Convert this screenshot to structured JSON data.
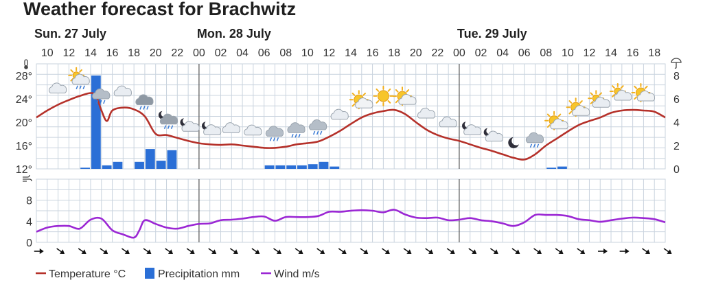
{
  "title": "Weather forecast for Brachwitz",
  "days": [
    {
      "label": "Sun. 27 July",
      "hour": 9
    },
    {
      "label": "Mon. 28 July",
      "hour": 24
    },
    {
      "label": "Tue. 29 July",
      "hour": 48
    }
  ],
  "hour_ticks": [
    "10",
    "12",
    "14",
    "16",
    "18",
    "20",
    "22",
    "00",
    "02",
    "04",
    "06",
    "08",
    "10",
    "12",
    "14",
    "16",
    "18",
    "20",
    "22",
    "00",
    "02",
    "04",
    "06",
    "08",
    "10",
    "12",
    "14",
    "16",
    "18"
  ],
  "colors": {
    "temperature": "#b5312a",
    "precipitation": "#2b6fd6",
    "wind": "#9b27d4",
    "grid": "#c9d3de",
    "day_separator": "#555555"
  },
  "chart_data": [
    {
      "type": "line",
      "title": "",
      "x_unit": "hours from Sun. 27 July 00:00",
      "x_range": [
        9,
        67
      ],
      "temperature": {
        "name": "Temperature °C",
        "axis": "left",
        "ticks": [
          "28°",
          "24°",
          "20°",
          "16°",
          "12°"
        ],
        "tick_values": [
          28,
          24,
          20,
          16,
          12
        ],
        "ylim": [
          12,
          30
        ],
        "x": [
          9,
          10,
          11,
          12,
          13,
          14,
          14.5,
          15,
          15.5,
          16,
          17,
          18,
          19,
          20,
          21,
          22,
          23,
          24,
          25,
          26,
          27,
          28,
          29,
          30,
          31,
          32,
          33,
          34,
          35,
          36,
          37,
          38,
          39,
          40,
          41,
          42,
          43,
          44,
          45,
          46,
          47,
          48,
          49,
          50,
          51,
          52,
          53,
          54,
          55,
          56,
          57,
          58,
          59,
          60,
          61,
          62,
          63,
          64,
          65,
          66,
          67
        ],
        "values": [
          20.8,
          22,
          23,
          23.8,
          24.5,
          25,
          24.5,
          22,
          20.2,
          22,
          22.5,
          22.2,
          21,
          18,
          17.8,
          17.3,
          16.8,
          16.4,
          16.2,
          16.1,
          16.2,
          16,
          15.8,
          15.6,
          15.6,
          15.8,
          16.2,
          16.4,
          16.7,
          17.5,
          18.5,
          19.7,
          20.8,
          21.5,
          21.9,
          22.1,
          21.4,
          20,
          18.7,
          17.8,
          17.2,
          16.8,
          16.2,
          15.6,
          15.1,
          14.5,
          13.9,
          13.6,
          14.5,
          16,
          17.2,
          18.4,
          19.5,
          20.2,
          20.8,
          21.6,
          22,
          22.1,
          22,
          21.8,
          20.8
        ]
      },
      "precipitation": {
        "name": "Precipitation mm",
        "axis": "right",
        "ticks": [
          "8",
          "6",
          "4",
          "2",
          "0"
        ],
        "tick_values": [
          8,
          6,
          4,
          2,
          0
        ],
        "ylim": [
          0,
          9
        ],
        "x": [
          13,
          14,
          15,
          16,
          18,
          19,
          20,
          21,
          30,
          31,
          32,
          33,
          34,
          35,
          36,
          56,
          57
        ],
        "values": [
          0.1,
          8,
          0.3,
          0.6,
          0.6,
          1.7,
          0.7,
          1.6,
          0.3,
          0.3,
          0.3,
          0.3,
          0.4,
          0.6,
          0.2,
          0.1,
          0.2
        ]
      },
      "icons": [
        {
          "x": 11,
          "kind": "cloudy"
        },
        {
          "x": 13,
          "kind": "partly-cloudy-rain"
        },
        {
          "x": 15,
          "kind": "cloudy-rain"
        },
        {
          "x": 17,
          "kind": "cloudy"
        },
        {
          "x": 19,
          "kind": "rain"
        },
        {
          "x": 21,
          "kind": "night-cloudy-rain"
        },
        {
          "x": 23,
          "kind": "night-cloudy"
        },
        {
          "x": 25,
          "kind": "night-cloudy"
        },
        {
          "x": 27,
          "kind": "cloudy"
        },
        {
          "x": 29,
          "kind": "cloudy"
        },
        {
          "x": 31,
          "kind": "cloudy-rain"
        },
        {
          "x": 33,
          "kind": "cloudy-rain"
        },
        {
          "x": 35,
          "kind": "cloudy-rain"
        },
        {
          "x": 37,
          "kind": "cloudy"
        },
        {
          "x": 39,
          "kind": "partly-sunny"
        },
        {
          "x": 41,
          "kind": "sun"
        },
        {
          "x": 43,
          "kind": "partly-sunny"
        },
        {
          "x": 45,
          "kind": "cloudy"
        },
        {
          "x": 47,
          "kind": "cloudy"
        },
        {
          "x": 49,
          "kind": "night-cloudy"
        },
        {
          "x": 51,
          "kind": "night-cloudy"
        },
        {
          "x": 53,
          "kind": "moon"
        },
        {
          "x": 55,
          "kind": "cloudy-rain"
        },
        {
          "x": 57,
          "kind": "partly-sunny"
        },
        {
          "x": 59,
          "kind": "partly-sunny"
        },
        {
          "x": 61,
          "kind": "partly-cloudy"
        },
        {
          "x": 63,
          "kind": "partly-cloudy"
        },
        {
          "x": 65,
          "kind": "partly-sunny"
        }
      ]
    },
    {
      "type": "line",
      "title": "",
      "x_range": [
        9,
        67
      ],
      "wind": {
        "name": "Wind m/s",
        "axis": "left",
        "ticks": [
          "8",
          "4",
          "0"
        ],
        "tick_values": [
          8,
          4,
          0
        ],
        "ylim": [
          0,
          12
        ],
        "x": [
          9,
          10,
          11,
          12,
          13,
          14,
          15,
          16,
          17,
          18,
          18.5,
          19,
          20,
          21,
          22,
          23,
          24,
          25,
          26,
          27,
          28,
          29,
          30,
          31,
          32,
          33,
          34,
          35,
          36,
          37,
          38,
          39,
          40,
          41,
          42,
          43,
          44,
          45,
          46,
          47,
          48,
          49,
          50,
          51,
          52,
          53,
          54,
          55,
          56,
          57,
          58,
          59,
          60,
          61,
          62,
          63,
          64,
          65,
          66,
          67
        ],
        "values": [
          2,
          2.8,
          3.1,
          3.1,
          2.6,
          4.3,
          4.5,
          2.3,
          1.5,
          0.9,
          2.3,
          4.2,
          3.5,
          2.8,
          2.6,
          3.1,
          3.5,
          3.6,
          4.2,
          4.3,
          4.5,
          4.8,
          4.9,
          4.1,
          4.8,
          4.8,
          4.8,
          5,
          5.8,
          5.8,
          6,
          6.1,
          6,
          5.7,
          6.2,
          5.3,
          4.7,
          4.6,
          4.7,
          4.2,
          4.3,
          4.6,
          4.2,
          4,
          3.6,
          3.1,
          3.8,
          5.2,
          5.2,
          5.2,
          5,
          4.4,
          4.2,
          3.9,
          4.2,
          4.5,
          4.7,
          4.6,
          4.4,
          3.8
        ]
      },
      "wind_arrows": {
        "count": 30,
        "directions": [
          "E",
          "SE",
          "SE",
          "SE",
          "SE",
          "SE",
          "SE",
          "SE",
          "SE",
          "SE",
          "SE",
          "SE",
          "SE",
          "SE",
          "SE",
          "SE",
          "SE",
          "SE",
          "SE",
          "SE",
          "SE",
          "SE",
          "SE",
          "SE",
          "SE",
          "SE",
          "E",
          "E",
          "SE",
          "SE"
        ]
      }
    }
  ],
  "legend": [
    {
      "label": "Temperature °C",
      "kind": "line",
      "color_key": "temperature"
    },
    {
      "label": "Precipitation mm",
      "kind": "box",
      "color_key": "precipitation"
    },
    {
      "label": "Wind m/s",
      "kind": "line",
      "color_key": "wind"
    }
  ],
  "icon_names": {
    "temperature_axis": "thermometer-icon",
    "precip_axis": "umbrella-icon",
    "wind_axis": "wind-icon"
  }
}
